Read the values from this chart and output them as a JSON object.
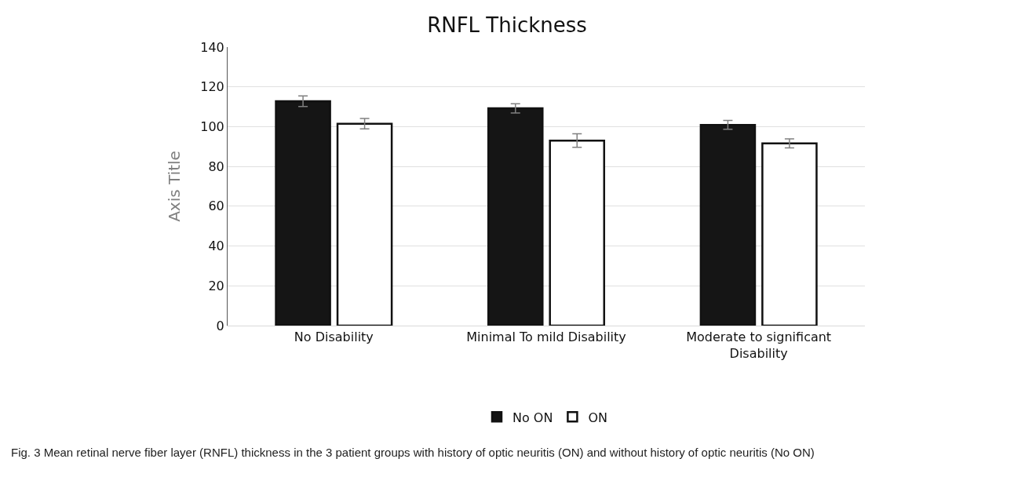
{
  "chart_data": {
    "type": "bar",
    "title": "RNFL Thickness",
    "ylabel": "Axis Title",
    "categories": [
      "No Disability",
      "Minimal To mild Disability",
      "Moderate to significant Disability"
    ],
    "series": [
      {
        "name": "No ON",
        "color": "#151515",
        "values": [
          112.8,
          109.2,
          100.9
        ],
        "errors": [
          2.7,
          2.3,
          2.2
        ]
      },
      {
        "name": "ON",
        "color": "#ffffff",
        "values": [
          101.5,
          93,
          91.6
        ],
        "errors": [
          2.6,
          3.4,
          2.3
        ]
      }
    ],
    "ylim": [
      0,
      140
    ],
    "yticks": [
      0,
      20,
      40,
      60,
      80,
      100,
      120,
      140
    ],
    "grid": "y",
    "legend": "bottom",
    "annotations": [
      "Fig. 3 Mean retinal nerve fiber layer (RNFL) thickness in the 3 patient groups with history of optic neuritis (ON) and without history of optic neuritis (No ON)"
    ]
  }
}
